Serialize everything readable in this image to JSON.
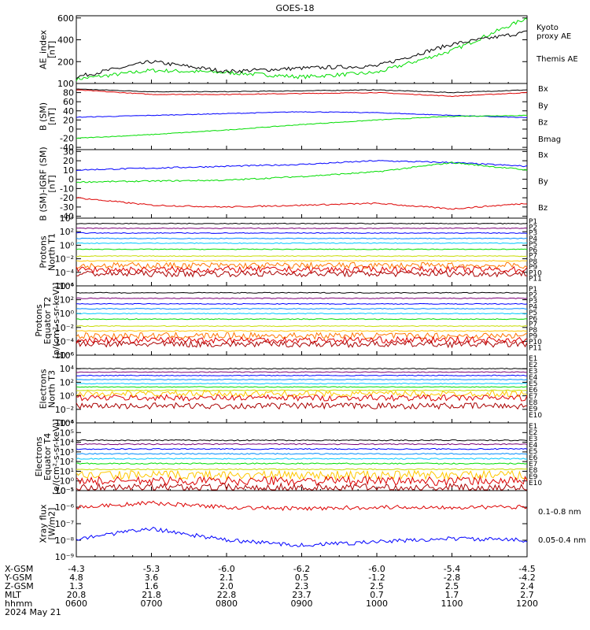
{
  "title": "GOES-18",
  "colors": {
    "black": "#000000",
    "blue": "#0000ff",
    "green": "#00dd00",
    "red": "#dd0000"
  },
  "footer": {
    "rows": [
      {
        "label": "X-GSM",
        "values": [
          "-4.3",
          "-5.3",
          "-6.0",
          "-6.2",
          "-6.0",
          "-5.4",
          "-4.5"
        ]
      },
      {
        "label": "Y-GSM",
        "values": [
          "4.8",
          "3.6",
          "2.1",
          "0.5",
          "-1.2",
          "-2.8",
          "-4.2"
        ]
      },
      {
        "label": "Z-GSM",
        "values": [
          "1.3",
          "1.6",
          "2.0",
          "2.3",
          "2.5",
          "2.5",
          "2.4"
        ]
      },
      {
        "label": "MLT",
        "values": [
          "20.8",
          "21.8",
          "22.8",
          "23.7",
          "0.7",
          "1.7",
          "2.7"
        ]
      },
      {
        "label": "hhmm",
        "values": [
          "0600",
          "0700",
          "0800",
          "0900",
          "1000",
          "1100",
          "1200"
        ]
      }
    ],
    "date": "2024 May 21"
  },
  "chart_data": [
    {
      "type": "line",
      "id": "ae",
      "ylabel": "AE_index\n[nT]",
      "ylim": [
        0,
        620
      ],
      "yticks": [
        "600",
        "400",
        "200"
      ],
      "ytick_values": [
        600,
        400,
        200
      ],
      "legend": [
        {
          "name": "Kyoto\nproxy AE",
          "color": "#00dd00"
        },
        {
          "name": "Themis AE",
          "color": "#000000"
        }
      ],
      "x": [
        "0600",
        "0700",
        "0800",
        "0900",
        "1000",
        "1100",
        "1200"
      ],
      "series": [
        {
          "name": "Kyoto proxy AE",
          "color": "#00dd00",
          "values": [
            40,
            120,
            100,
            60,
            100,
            300,
            600
          ]
        },
        {
          "name": "Themis AE",
          "color": "#000000",
          "values": [
            60,
            200,
            110,
            140,
            160,
            360,
            470
          ]
        }
      ]
    },
    {
      "type": "line",
      "id": "bsm",
      "ylabel": "B (SM)\n[nT]",
      "ylim": [
        -45,
        100
      ],
      "yticks": [
        "100",
        "80",
        "60",
        "40",
        "20",
        "0",
        "-20",
        "-40"
      ],
      "ytick_values": [
        100,
        80,
        60,
        40,
        20,
        0,
        -20,
        -40
      ],
      "legend": [
        {
          "name": "Bx",
          "color": "#0000ff"
        },
        {
          "name": "By",
          "color": "#00dd00"
        },
        {
          "name": "Bz",
          "color": "#dd0000"
        },
        {
          "name": "Bmag",
          "color": "#000000"
        }
      ],
      "series": [
        {
          "name": "Bmag",
          "color": "#000000",
          "values": [
            88,
            82,
            82,
            84,
            86,
            80,
            86
          ]
        },
        {
          "name": "Bz",
          "color": "#dd0000",
          "values": [
            86,
            76,
            76,
            78,
            80,
            72,
            80
          ]
        },
        {
          "name": "Bx",
          "color": "#0000ff",
          "values": [
            26,
            30,
            34,
            38,
            36,
            30,
            25
          ]
        },
        {
          "name": "By",
          "color": "#00dd00",
          "values": [
            -20,
            -12,
            -2,
            10,
            20,
            28,
            30
          ]
        }
      ]
    },
    {
      "type": "line",
      "id": "bigrf",
      "ylabel": "B (SM)-IGRF (SM)\n[nT]",
      "ylim": [
        -42,
        32
      ],
      "yticks": [
        "30",
        "20",
        "10",
        "0",
        "-10",
        "-20",
        "-30",
        "-40"
      ],
      "ytick_values": [
        30,
        20,
        10,
        0,
        -10,
        -20,
        -30,
        -40
      ],
      "legend": [
        {
          "name": "Bx",
          "color": "#0000ff"
        },
        {
          "name": "By",
          "color": "#00dd00"
        },
        {
          "name": "Bz",
          "color": "#dd0000"
        }
      ],
      "series": [
        {
          "name": "Bx",
          "color": "#0000ff",
          "values": [
            10,
            12,
            14,
            16,
            20,
            18,
            14
          ]
        },
        {
          "name": "By",
          "color": "#00dd00",
          "values": [
            -3,
            -2,
            -1,
            3,
            8,
            18,
            10
          ]
        },
        {
          "name": "Bz",
          "color": "#dd0000",
          "values": [
            -20,
            -28,
            -30,
            -28,
            -26,
            -32,
            -26
          ]
        }
      ]
    },
    {
      "type": "line",
      "id": "pn",
      "ylabel": "Protons\nNorth T1",
      "log": true,
      "ylim_exp": [
        -6,
        4
      ],
      "yticks": [
        "10⁴",
        "10²",
        "10⁰",
        "10⁻²",
        "10⁻⁴",
        "10⁻⁶"
      ],
      "ytick_exp": [
        4,
        2,
        0,
        -2,
        -4,
        -6
      ],
      "legend": [
        {
          "name": "P1",
          "color": "#000000"
        },
        {
          "name": "P2",
          "color": "#7a0077"
        },
        {
          "name": "P3",
          "color": "#0000ff"
        },
        {
          "name": "P4",
          "color": "#008cff"
        },
        {
          "name": "P5",
          "color": "#00c8ff"
        },
        {
          "name": "P6",
          "color": "#00dd00"
        },
        {
          "name": "P7",
          "color": "#c8dc00"
        },
        {
          "name": "P8",
          "color": "#ffc800"
        },
        {
          "name": "P9",
          "color": "#ff7800"
        },
        {
          "name": "P10",
          "color": "#dd0000"
        },
        {
          "name": "P11",
          "color": "#aa0000"
        }
      ],
      "series_exp": [
        3.2,
        2.5,
        1.8,
        1.0,
        0.3,
        -0.6,
        -1.6,
        -2.3,
        -3.0,
        -3.6,
        -4.2
      ]
    },
    {
      "type": "line",
      "id": "pe",
      "ylabel": "Protons\nEquator T2\n[p/(cm²-s-sr-keV)]",
      "log": true,
      "ylim_exp": [
        -6,
        4
      ],
      "yticks": [
        "10⁴",
        "10²",
        "10⁰",
        "10⁻²",
        "10⁻⁴",
        "10⁻⁶"
      ],
      "ytick_exp": [
        4,
        2,
        0,
        -2,
        -4,
        -6
      ],
      "legend": [
        {
          "name": "P1",
          "color": "#000000"
        },
        {
          "name": "P2",
          "color": "#7a0077"
        },
        {
          "name": "P3",
          "color": "#0000ff"
        },
        {
          "name": "P4",
          "color": "#008cff"
        },
        {
          "name": "P5",
          "color": "#00c8ff"
        },
        {
          "name": "P6",
          "color": "#00dd00"
        },
        {
          "name": "P7",
          "color": "#c8dc00"
        },
        {
          "name": "P8",
          "color": "#ffc800"
        },
        {
          "name": "P9",
          "color": "#ff7800"
        },
        {
          "name": "P10",
          "color": "#dd0000"
        },
        {
          "name": "P11",
          "color": "#aa0000"
        }
      ],
      "series_exp": [
        3.0,
        2.2,
        1.4,
        0.7,
        0.0,
        -0.8,
        -1.8,
        -2.5,
        -3.2,
        -3.8,
        -4.4
      ]
    },
    {
      "type": "line",
      "id": "en",
      "ylabel": "Electrons\nNorth T3",
      "log": true,
      "ylim_exp": [
        -4,
        6
      ],
      "yticks": [
        "10⁶",
        "10⁴",
        "10²",
        "10⁰",
        "10⁻²",
        "10⁻⁴"
      ],
      "ytick_exp": [
        6,
        4,
        2,
        0,
        -2,
        -4
      ],
      "legend": [
        {
          "name": "E1",
          "color": "#000000"
        },
        {
          "name": "E2",
          "color": "#7a0077"
        },
        {
          "name": "E3",
          "color": "#0000ff"
        },
        {
          "name": "E4",
          "color": "#008cff"
        },
        {
          "name": "E5",
          "color": "#00c8ff"
        },
        {
          "name": "E6",
          "color": "#00dd00"
        },
        {
          "name": "E7",
          "color": "#c8dc00"
        },
        {
          "name": "E8",
          "color": "#ffc800"
        },
        {
          "name": "E9",
          "color": "#dd0000"
        },
        {
          "name": "E10",
          "color": "#aa0000"
        }
      ],
      "series_exp": [
        4.0,
        3.5,
        3.0,
        2.4,
        1.8,
        1.3,
        0.8,
        0.3,
        -0.3,
        -1.5
      ]
    },
    {
      "type": "line",
      "id": "ee",
      "ylabel": "Electrons\nEquator T4\n[e/(cm²-s-sr-keV)]",
      "log": true,
      "ylim_exp": [
        -1,
        6
      ],
      "yticks": [
        "10⁶",
        "10⁵",
        "10⁴",
        "10³",
        "10²",
        "10¹",
        "10⁰",
        "10⁻¹"
      ],
      "ytick_exp": [
        6,
        5,
        4,
        3,
        2,
        1,
        0,
        -1
      ],
      "legend": [
        {
          "name": "E1",
          "color": "#000000"
        },
        {
          "name": "E2",
          "color": "#7a0077"
        },
        {
          "name": "E3",
          "color": "#0000ff"
        },
        {
          "name": "E4",
          "color": "#008cff"
        },
        {
          "name": "E5",
          "color": "#00c8ff"
        },
        {
          "name": "E6",
          "color": "#00dd00"
        },
        {
          "name": "E7",
          "color": "#c8dc00"
        },
        {
          "name": "E8",
          "color": "#ffc800"
        },
        {
          "name": "E9",
          "color": "#dd0000"
        },
        {
          "name": "E10",
          "color": "#aa0000"
        }
      ],
      "series_exp": [
        4.2,
        3.8,
        3.3,
        2.8,
        2.3,
        1.8,
        1.2,
        0.6,
        0.0,
        -0.7
      ]
    },
    {
      "type": "line",
      "id": "xray",
      "ylabel": "Xray flux\n[W/m2]",
      "log": true,
      "ylim_exp": [
        -9,
        -5
      ],
      "yticks": [
        "10⁻⁵",
        "10⁻⁶",
        "10⁻⁷",
        "10⁻⁸",
        "10⁻⁹"
      ],
      "ytick_exp": [
        -5,
        -6,
        -7,
        -8,
        -9
      ],
      "legend": [
        {
          "name": "0.1-0.8 nm",
          "color": "#dd0000"
        },
        {
          "name": "0.05-0.4 nm",
          "color": "#0000ff"
        }
      ],
      "series": [
        {
          "name": "0.1-0.8 nm",
          "color": "#dd0000",
          "values_exp": [
            -6.0,
            -5.75,
            -6.0,
            -6.1,
            -6.0,
            -6.0,
            -6.0
          ]
        },
        {
          "name": "0.05-0.4 nm",
          "color": "#0000ff",
          "values_exp": [
            -7.9,
            -7.3,
            -8.0,
            -8.3,
            -8.1,
            -7.9,
            -8.0
          ]
        }
      ]
    }
  ]
}
